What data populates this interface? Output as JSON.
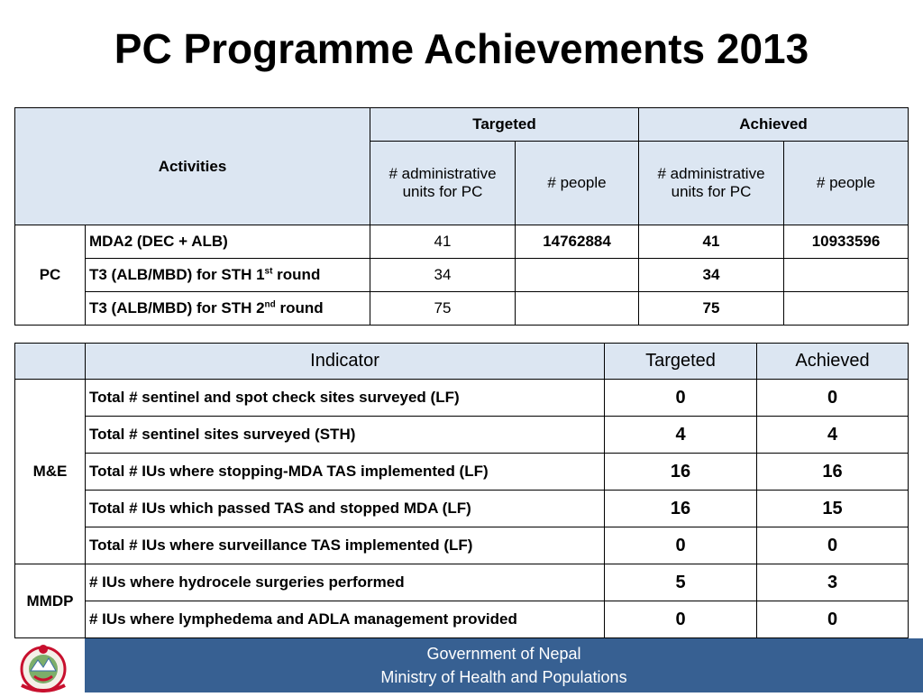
{
  "title": "PC Programme Achievements 2013",
  "table1": {
    "activities_label": "Activities",
    "targeted_label": "Targeted",
    "achieved_label": "Achieved",
    "sub_headers": [
      "# administrative units for PC",
      "# people",
      "# administrative units for PC",
      "# people"
    ],
    "group_label": "PC",
    "rows": [
      {
        "activity": "MDA2 (DEC + ALB)",
        "t_units": "41",
        "t_people": "14762884",
        "a_units": "41",
        "a_people": "10933596"
      },
      {
        "activity_pre": "T3 (ALB/MBD) for STH 1",
        "activity_sup": "st",
        "activity_post": " round",
        "t_units": "34",
        "t_people": "",
        "a_units": "34",
        "a_people": ""
      },
      {
        "activity_pre": "T3 (ALB/MBD) for STH 2",
        "activity_sup": "nd",
        "activity_post": " round",
        "t_units": "75",
        "t_people": "",
        "a_units": "75",
        "a_people": ""
      }
    ]
  },
  "table2": {
    "headers": {
      "indicator": "Indicator",
      "targeted": "Targeted",
      "achieved": "Achieved"
    },
    "groups": [
      {
        "label": "M&E",
        "rows": [
          {
            "indicator": "Total # sentinel and spot check sites surveyed (LF)",
            "targeted": "0",
            "achieved": "0"
          },
          {
            "indicator": "Total # sentinel sites surveyed (STH)",
            "targeted": "4",
            "achieved": "4"
          },
          {
            "indicator": "Total # IUs where stopping-MDA TAS implemented (LF)",
            "targeted": "16",
            "achieved": "16"
          },
          {
            "indicator": "Total # IUs which passed TAS and stopped MDA (LF)",
            "targeted": "16",
            "achieved": "15"
          },
          {
            "indicator": "Total # IUs where surveillance TAS implemented (LF)",
            "targeted": "0",
            "achieved": "0"
          }
        ]
      },
      {
        "label": "MMDP",
        "rows": [
          {
            "indicator": "# IUs where hydrocele surgeries performed",
            "targeted": "5",
            "achieved": "3"
          },
          {
            "indicator": "# IUs where lymphedema and ADLA management provided",
            "targeted": "0",
            "achieved": "0"
          }
        ]
      }
    ]
  },
  "footer": {
    "line1": "Government of Nepal",
    "line2": "Ministry of Health and Populations"
  },
  "colors": {
    "header_bg": "#dce6f2",
    "footer_bg": "#376092"
  }
}
